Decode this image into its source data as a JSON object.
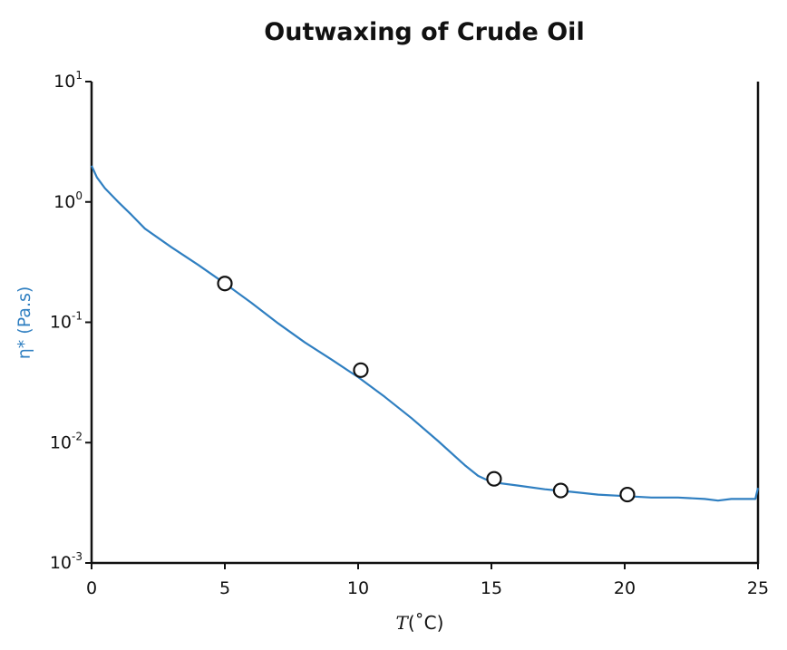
{
  "chart_data": {
    "type": "line",
    "title": "Outwaxing of Crude Oil",
    "xlabel_var": "T",
    "xlabel_unit": "(˚C)",
    "ylabel": "η* (Pa.s)",
    "xlim": [
      0,
      25
    ],
    "ylim": [
      0.001,
      10
    ],
    "yscale": "log",
    "x_ticks": [
      "0",
      "5",
      "10",
      "15",
      "20",
      "25"
    ],
    "y_ticks": [
      {
        "base": "10",
        "exp": "1"
      },
      {
        "base": "10",
        "exp": "0"
      },
      {
        "base": "10",
        "exp": "-1"
      },
      {
        "base": "10",
        "exp": "-2"
      },
      {
        "base": "10",
        "exp": "-3"
      }
    ],
    "grid": false,
    "series": [
      {
        "color": "#2f7fc1",
        "x": [
          0,
          0.2,
          0.5,
          1,
          1.5,
          2,
          3,
          4,
          5,
          6,
          7,
          8,
          9,
          10,
          11,
          12,
          13,
          14,
          14.5,
          15,
          16,
          17,
          17.5,
          18,
          19,
          20,
          21,
          22,
          23,
          23.5,
          24,
          24.5,
          24.9,
          25
        ],
        "y": [
          2.0,
          1.6,
          1.3,
          1.0,
          0.78,
          0.6,
          0.42,
          0.3,
          0.21,
          0.145,
          0.098,
          0.068,
          0.049,
          0.035,
          0.024,
          0.016,
          0.0103,
          0.0065,
          0.0053,
          0.0047,
          0.0044,
          0.0041,
          0.004,
          0.0039,
          0.0037,
          0.0036,
          0.0035,
          0.0035,
          0.0034,
          0.0033,
          0.0034,
          0.0034,
          0.0034,
          0.0042
        ]
      }
    ],
    "markers": [
      {
        "x": 5,
        "y": 0.21
      },
      {
        "x": 10.1,
        "y": 0.04
      },
      {
        "x": 15.1,
        "y": 0.005
      },
      {
        "x": 17.6,
        "y": 0.004
      },
      {
        "x": 20.1,
        "y": 0.0037
      }
    ]
  }
}
